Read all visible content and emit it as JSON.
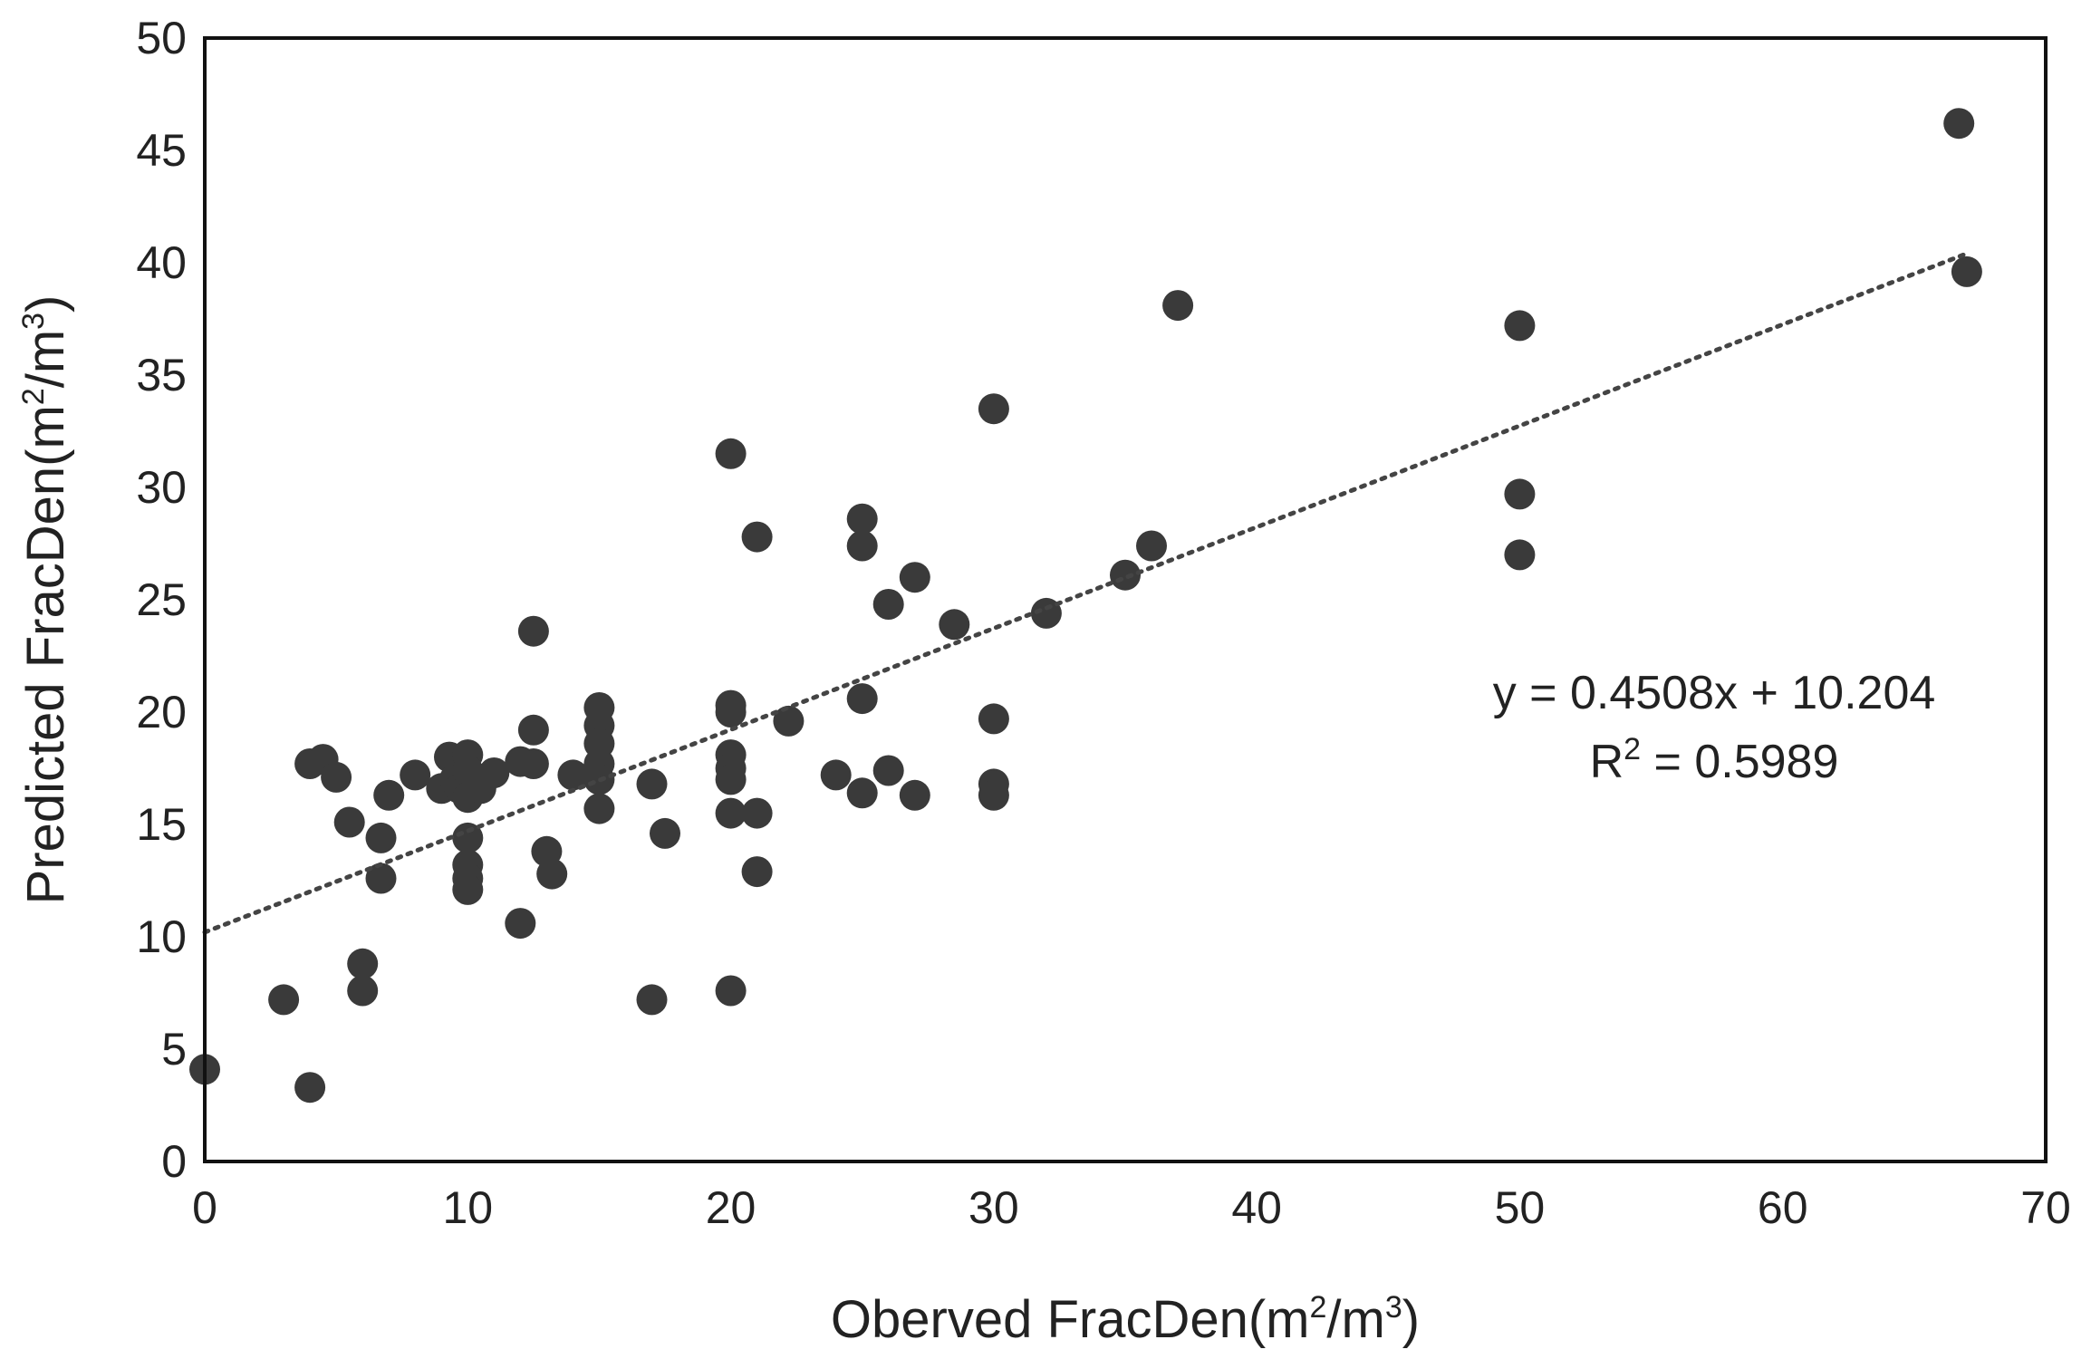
{
  "chart_data": {
    "type": "scatter",
    "xlabel_main": "Oberved FracDen(m",
    "xlabel_sup1": "2",
    "xlabel_mid": "/m",
    "xlabel_sup2": "3",
    "xlabel_end": ")",
    "ylabel_main": "Predicted FracDen(m",
    "ylabel_sup1": "2",
    "ylabel_mid": "/m",
    "ylabel_sup2": "3",
    "ylabel_end": ")",
    "xlim": [
      0,
      70
    ],
    "ylim": [
      0,
      50
    ],
    "xticks": [
      0,
      10,
      20,
      30,
      40,
      50,
      60,
      70
    ],
    "yticks": [
      0,
      5,
      10,
      15,
      20,
      25,
      30,
      35,
      40,
      45,
      50
    ],
    "grid": false,
    "legend": "none",
    "marker_color": "#3a3a3a",
    "trendline": {
      "slope": 0.4508,
      "intercept": 10.204,
      "style": "dotted",
      "color": "#444444"
    },
    "equation_text": "y = 0.4508x + 10.204",
    "r2_label": "R",
    "r2_sup": "2",
    "r2_value": " = 0.5989",
    "points": [
      [
        0,
        4.1
      ],
      [
        3,
        7.2
      ],
      [
        4,
        3.3
      ],
      [
        4,
        17.7
      ],
      [
        4.5,
        17.9
      ],
      [
        5,
        17.1
      ],
      [
        5.5,
        15.1
      ],
      [
        6,
        8.8
      ],
      [
        6,
        7.6
      ],
      [
        6.7,
        14.4
      ],
      [
        6.7,
        12.6
      ],
      [
        7,
        16.3
      ],
      [
        8,
        17.2
      ],
      [
        9,
        16.6
      ],
      [
        9.3,
        18.0
      ],
      [
        9.5,
        17.0
      ],
      [
        9.7,
        16.6
      ],
      [
        10,
        18.1
      ],
      [
        10,
        17.4
      ],
      [
        10,
        16.2
      ],
      [
        10,
        14.4
      ],
      [
        10,
        13.2
      ],
      [
        10,
        12.6
      ],
      [
        10,
        12.1
      ],
      [
        10.5,
        16.6
      ],
      [
        11,
        17.3
      ],
      [
        12,
        10.6
      ],
      [
        12,
        17.8
      ],
      [
        12.5,
        23.6
      ],
      [
        12.5,
        19.2
      ],
      [
        12.5,
        17.7
      ],
      [
        13,
        13.8
      ],
      [
        13.2,
        12.8
      ],
      [
        14,
        17.2
      ],
      [
        15,
        20.2
      ],
      [
        15,
        19.4
      ],
      [
        15,
        18.6
      ],
      [
        15,
        17.7
      ],
      [
        15,
        17.0
      ],
      [
        15,
        15.7
      ],
      [
        17,
        16.8
      ],
      [
        17,
        7.2
      ],
      [
        17.5,
        14.6
      ],
      [
        20,
        31.5
      ],
      [
        20,
        20.3
      ],
      [
        20,
        20.0
      ],
      [
        20,
        18.1
      ],
      [
        20,
        17.5
      ],
      [
        20,
        17.0
      ],
      [
        20,
        15.5
      ],
      [
        20,
        7.6
      ],
      [
        21,
        27.8
      ],
      [
        21,
        15.5
      ],
      [
        21,
        12.9
      ],
      [
        22.2,
        19.6
      ],
      [
        24,
        17.2
      ],
      [
        25,
        28.6
      ],
      [
        25,
        27.4
      ],
      [
        25,
        20.6
      ],
      [
        25,
        16.4
      ],
      [
        26,
        24.8
      ],
      [
        26,
        17.4
      ],
      [
        27,
        26.0
      ],
      [
        27,
        16.3
      ],
      [
        28.5,
        23.9
      ],
      [
        30,
        33.5
      ],
      [
        30,
        19.7
      ],
      [
        30,
        16.8
      ],
      [
        30,
        16.3
      ],
      [
        32,
        24.4
      ],
      [
        35,
        26.1
      ],
      [
        36,
        27.4
      ],
      [
        37,
        38.1
      ],
      [
        50,
        37.2
      ],
      [
        50,
        29.7
      ],
      [
        50,
        27.0
      ],
      [
        66.7,
        46.2
      ],
      [
        67,
        39.6
      ]
    ]
  }
}
